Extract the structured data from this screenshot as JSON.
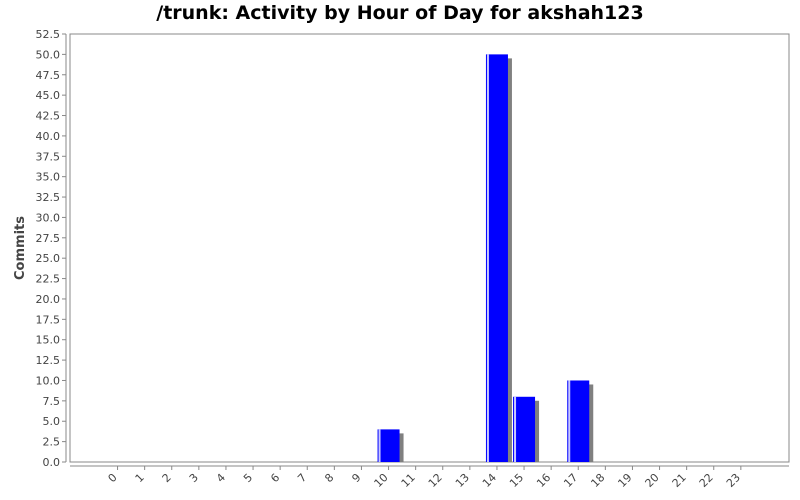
{
  "chart_data": {
    "type": "bar",
    "title": "/trunk: Activity by Hour of Day for akshah123",
    "xlabel": "",
    "ylabel": "Commits",
    "categories": [
      "0",
      "1",
      "2",
      "3",
      "4",
      "5",
      "6",
      "7",
      "8",
      "9",
      "10",
      "11",
      "12",
      "13",
      "14",
      "15",
      "16",
      "17",
      "18",
      "19",
      "20",
      "21",
      "22",
      "23"
    ],
    "series": [
      {
        "values": [
          0,
          0,
          0,
          0,
          0,
          0,
          0,
          0,
          0,
          0,
          4,
          0,
          0,
          0,
          50,
          8,
          0,
          10,
          0,
          0,
          0,
          0,
          0,
          0
        ]
      }
    ],
    "ylim": [
      0,
      52.5
    ],
    "yticks": [
      "0.0",
      "2.5",
      "5.0",
      "7.5",
      "10.0",
      "12.5",
      "15.0",
      "17.5",
      "20.0",
      "22.5",
      "25.0",
      "27.5",
      "30.0",
      "32.5",
      "35.0",
      "37.5",
      "40.0",
      "42.5",
      "45.0",
      "47.5",
      "50.0",
      "52.5"
    ],
    "grid": false,
    "legend": "none",
    "bar_color": "#0000ff",
    "shadow_color": "#808080"
  }
}
